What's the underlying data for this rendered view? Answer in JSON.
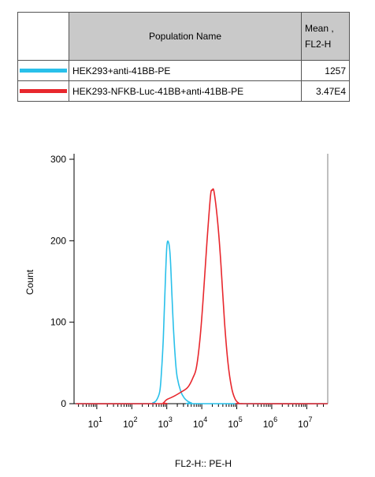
{
  "legend": {
    "header_name": "Population Name",
    "header_mean_line1": "Mean ,",
    "header_mean_line2": "FL2-H",
    "rows": [
      {
        "name": "HEK293+anti-41BB-PE",
        "mean": "1257",
        "color": "#29c0ea"
      },
      {
        "name": "HEK293-NFKB-Luc-41BB+anti-41BB-PE",
        "mean": "3.47E4",
        "color": "#e8272d"
      }
    ]
  },
  "chart_data": {
    "type": "line",
    "xlabel": "FL2-H:: PE-H",
    "ylabel": "Count",
    "x_scale": "log",
    "x_ticks": [
      {
        "base": "10",
        "exp": "1",
        "value": 10
      },
      {
        "base": "10",
        "exp": "2",
        "value": 100
      },
      {
        "base": "10",
        "exp": "3",
        "value": 1000
      },
      {
        "base": "10",
        "exp": "4",
        "value": 10000
      },
      {
        "base": "10",
        "exp": "5",
        "value": 100000
      },
      {
        "base": "10",
        "exp": "6",
        "value": 1000000
      },
      {
        "base": "10",
        "exp": "7",
        "value": 10000000
      }
    ],
    "y_ticks": [
      "0",
      "100",
      "200",
      "300"
    ],
    "ylim": [
      0,
      300
    ],
    "xlim_log10": [
      0.35,
      7.6
    ],
    "grid": false,
    "series": [
      {
        "name": "HEK293+anti-41BB-PE",
        "color": "#29c0ea",
        "points": [
          [
            0.4,
            0
          ],
          [
            2.5,
            0
          ],
          [
            2.6,
            1
          ],
          [
            2.7,
            4
          ],
          [
            2.8,
            15
          ],
          [
            2.85,
            40
          ],
          [
            2.9,
            80
          ],
          [
            2.95,
            140
          ],
          [
            3.0,
            192
          ],
          [
            3.05,
            198
          ],
          [
            3.1,
            180
          ],
          [
            3.15,
            130
          ],
          [
            3.2,
            85
          ],
          [
            3.25,
            52
          ],
          [
            3.3,
            32
          ],
          [
            3.4,
            15
          ],
          [
            3.5,
            7
          ],
          [
            3.6,
            3
          ],
          [
            3.7,
            1
          ],
          [
            3.9,
            0
          ],
          [
            7.6,
            0
          ]
        ]
      },
      {
        "name": "HEK293-NFKB-Luc-41BB+anti-41BB-PE",
        "color": "#e8272d",
        "points": [
          [
            0.4,
            0
          ],
          [
            2.8,
            0
          ],
          [
            2.9,
            1
          ],
          [
            3.0,
            5
          ],
          [
            3.2,
            9
          ],
          [
            3.4,
            14
          ],
          [
            3.6,
            20
          ],
          [
            3.75,
            32
          ],
          [
            3.85,
            45
          ],
          [
            3.95,
            80
          ],
          [
            4.05,
            135
          ],
          [
            4.15,
            200
          ],
          [
            4.25,
            255
          ],
          [
            4.3,
            262
          ],
          [
            4.35,
            260
          ],
          [
            4.45,
            225
          ],
          [
            4.55,
            170
          ],
          [
            4.65,
            100
          ],
          [
            4.75,
            50
          ],
          [
            4.85,
            20
          ],
          [
            4.95,
            6
          ],
          [
            5.05,
            1
          ],
          [
            5.2,
            0
          ],
          [
            7.6,
            0
          ]
        ]
      }
    ]
  }
}
